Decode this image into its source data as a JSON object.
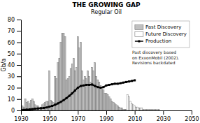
{
  "chart_data": {
    "type": "bar",
    "title": "THE GROWING GAP",
    "subtitle": "Regular Oil",
    "y_label": "Gb/a",
    "xlim": [
      1930,
      2050
    ],
    "ylim": [
      0,
      80
    ],
    "xticks": [
      1930,
      1950,
      1970,
      1990,
      2010,
      2030,
      2050
    ],
    "yticks": [
      0,
      10,
      20,
      30,
      40,
      50,
      60,
      70,
      80
    ],
    "grid": false,
    "legend": "upper right",
    "annotation": "Past discovery based\non ExxonMobil (2002).\nRevisions backdated",
    "series": [
      {
        "name": "Past Discovery",
        "type": "bar",
        "color": "#c0c0c0",
        "x": [
          1930,
          1931,
          1932,
          1933,
          1934,
          1935,
          1936,
          1937,
          1938,
          1939,
          1940,
          1941,
          1942,
          1943,
          1944,
          1945,
          1946,
          1947,
          1948,
          1949,
          1950,
          1951,
          1952,
          1953,
          1954,
          1955,
          1956,
          1957,
          1958,
          1959,
          1960,
          1961,
          1962,
          1963,
          1964,
          1965,
          1966,
          1967,
          1968,
          1969,
          1970,
          1971,
          1972,
          1973,
          1974,
          1975,
          1976,
          1977,
          1978,
          1979,
          1980,
          1981,
          1982,
          1983,
          1984,
          1985,
          1986,
          1987,
          1988,
          1989,
          1990,
          1991,
          1992,
          1993,
          1994,
          1995,
          1996,
          1997,
          1998,
          1999,
          2000,
          2001,
          2002,
          2003
        ],
        "values": [
          2,
          4,
          3,
          10,
          7,
          8,
          6,
          9,
          10,
          8,
          5,
          4,
          4,
          3,
          3,
          5,
          6,
          7,
          8,
          8,
          35,
          9,
          8,
          7,
          30,
          28,
          42,
          46,
          60,
          68,
          68,
          65,
          27,
          28,
          30,
          37,
          41,
          46,
          35,
          38,
          65,
          55,
          60,
          35,
          27,
          30,
          28,
          35,
          30,
          25,
          38,
          35,
          42,
          30,
          27,
          25,
          22,
          20,
          18,
          15,
          15,
          14,
          12,
          10,
          8,
          7,
          6,
          5,
          4,
          3,
          2,
          2,
          1,
          1
        ]
      },
      {
        "name": "Future Discovery",
        "type": "bar",
        "color": "#ffffff",
        "x": [
          2004,
          2005,
          2006,
          2007,
          2008,
          2009,
          2010,
          2011,
          2012,
          2013,
          2014,
          2015,
          2016,
          2017,
          2018,
          2019,
          2020,
          2021,
          2022,
          2023,
          2024,
          2025,
          2026,
          2027,
          2028,
          2029,
          2030,
          2031,
          2032,
          2033,
          2034,
          2035,
          2036,
          2037,
          2038,
          2039,
          2040,
          2041,
          2042,
          2043,
          2044,
          2045,
          2046,
          2047,
          2048,
          2049
        ],
        "values": [
          1,
          14,
          12,
          8,
          6,
          5,
          4,
          3,
          3,
          2,
          2,
          2,
          1,
          1,
          1,
          1,
          1,
          1,
          1,
          1,
          1,
          1,
          1,
          1,
          0,
          0,
          0,
          0,
          0,
          0,
          0,
          0,
          0,
          0,
          0,
          0,
          0,
          0,
          0,
          0,
          0,
          0,
          0,
          0,
          0,
          0
        ]
      },
      {
        "name": "Production",
        "type": "line",
        "color": "#000000",
        "marker": "square",
        "line_style": "solid",
        "x": [
          1930,
          1932,
          1934,
          1936,
          1938,
          1940,
          1942,
          1944,
          1946,
          1948,
          1950,
          1952,
          1954,
          1956,
          1958,
          1960,
          1962,
          1964,
          1966,
          1968,
          1970,
          1972,
          1974,
          1976,
          1978,
          1980,
          1982,
          1984,
          1986,
          1988,
          1990,
          1992,
          1994,
          1996,
          1998,
          2000,
          2002,
          2004,
          2006,
          2008,
          2010
        ],
        "values": [
          0.3,
          0.5,
          0.7,
          0.9,
          1.2,
          1.5,
          1.7,
          1.9,
          2.2,
          2.6,
          3.2,
          4.0,
          5.0,
          6.2,
          7.5,
          9.0,
          10.8,
          12.8,
          15.0,
          17.5,
          20.0,
          21.5,
          22.0,
          22.5,
          22.5,
          22.8,
          21.5,
          20.5,
          20.0,
          20.5,
          22.0,
          22.5,
          23.0,
          23.5,
          23.5,
          24.0,
          24.5,
          25.0,
          25.5,
          26.0,
          26.5
        ]
      }
    ]
  }
}
